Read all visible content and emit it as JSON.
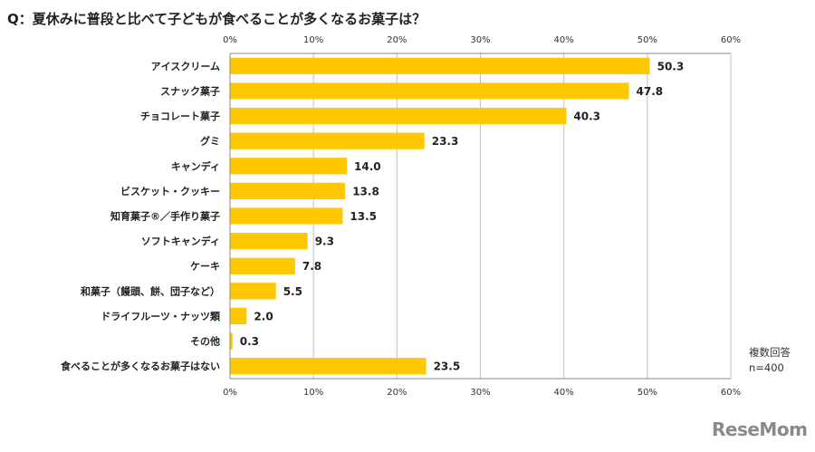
{
  "title": "Q：夏休みに普段と比べて子どもが食べることが多くなるお菓子は？",
  "note": {
    "line1": "複数回答",
    "line2": "n=400"
  },
  "logo": "ReseMom",
  "colors": {
    "bar": "#ffc800",
    "axis": "#888888",
    "grid": "#c0c0c0"
  },
  "chart_data": {
    "type": "bar",
    "orientation": "horizontal",
    "title": "Q：夏休みに普段と比べて子どもが食べることが多くなるお菓子は？",
    "xlabel": "",
    "ylabel": "",
    "xlim": [
      0,
      60
    ],
    "xticks": [
      "0%",
      "10%",
      "20%",
      "30%",
      "40%",
      "50%",
      "60%"
    ],
    "grid": true,
    "categories": [
      "アイスクリーム",
      "スナック菓子",
      "チョコレート菓子",
      "グミ",
      "キャンディ",
      "ビスケット・クッキー",
      "知育菓子®／手作り菓子",
      "ソフトキャンディ",
      "ケーキ",
      "和菓子（饅頭、餅、団子など）",
      "ドライフルーツ・ナッツ類",
      "その他",
      "食べることが多くなるお菓子はない"
    ],
    "values": [
      50.3,
      47.8,
      40.3,
      23.3,
      14.0,
      13.8,
      13.5,
      9.3,
      7.8,
      5.5,
      2.0,
      0.3,
      23.5
    ],
    "value_labels": [
      "50.3",
      "47.8",
      "40.3",
      "23.3",
      "14.0",
      "13.8",
      "13.5",
      "9.3",
      "7.8",
      "5.5",
      "2.0",
      "0.3",
      "23.5"
    ]
  }
}
